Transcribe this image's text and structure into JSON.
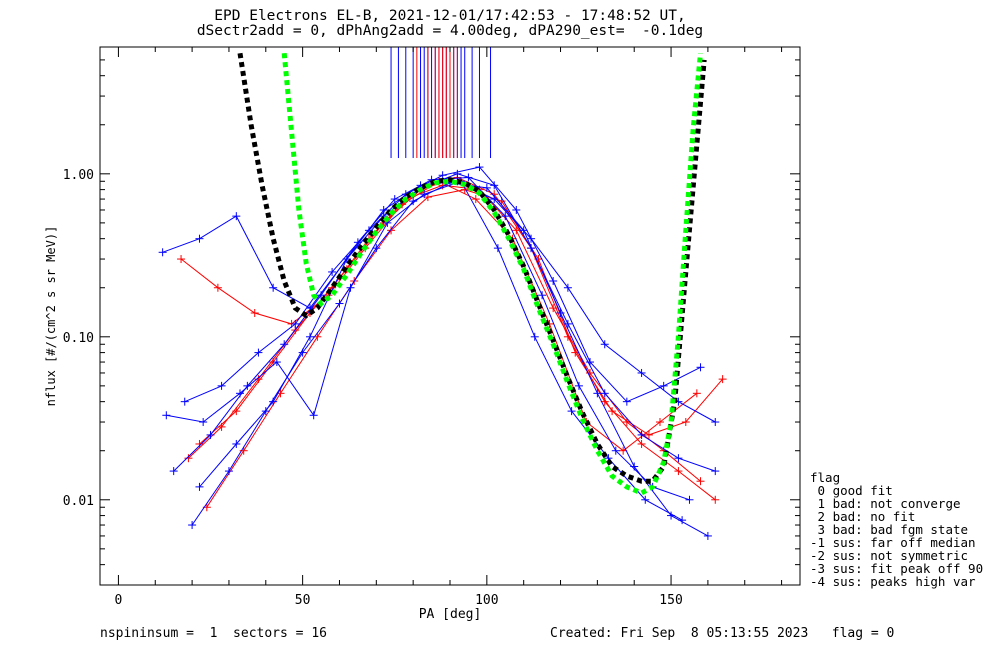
{
  "title_line1": "EPD Electrons EL-B, 2021-12-01/17:42:53 - 17:48:52 UT,",
  "title_line2": "dSectr2add = 0, dPhAng2add = 4.00deg, dPA290_est=  -0.1deg",
  "footer_left": "nspininsum =  1  sectors = 16",
  "footer_right": "Created: Fri Sep  8 05:13:55 2023   flag = 0",
  "legend": {
    "title": "flag",
    "items": [
      " 0 good fit",
      " 1 bad: not converge",
      " 2 bad: no fit",
      " 3 bad: bad fgm state",
      "-1 sus: far off median",
      "-2 sus: not symmetric",
      "-3 sus: fit peak off 90",
      "-4 sus: peaks high var"
    ]
  },
  "colors": {
    "series_a": "#ff0000",
    "series_b": "#0000ff",
    "fit_black": "#000000",
    "fit_green": "#00ff00"
  },
  "chart_data": {
    "type": "line",
    "xlabel": "PA [deg]",
    "ylabel": "nflux [#/(cm^2 s sr MeV)]",
    "xlim": [
      -5,
      185
    ],
    "ylim": [
      0.003,
      6.0
    ],
    "ylog": true,
    "x_ticks": [
      0,
      50,
      100,
      150
    ],
    "y_ticks": [
      0.01,
      0.1,
      1.0
    ],
    "y_tick_labels": [
      "0.01",
      "0.10",
      "1.00"
    ],
    "series": [
      {
        "color": "red",
        "x": [
          19,
          28,
          38,
          48,
          58,
          68,
          78,
          88,
          98,
          108,
          118,
          128,
          138,
          148,
          158
        ],
        "y": [
          0.018,
          0.028,
          0.055,
          0.11,
          0.2,
          0.4,
          0.7,
          0.85,
          0.8,
          0.45,
          0.15,
          0.06,
          0.03,
          0.02,
          0.013
        ]
      },
      {
        "color": "red",
        "x": [
          22,
          32,
          42,
          52,
          62,
          72,
          82,
          92,
          102,
          112,
          122,
          132,
          142,
          152,
          162
        ],
        "y": [
          0.022,
          0.035,
          0.07,
          0.14,
          0.26,
          0.5,
          0.8,
          0.95,
          0.75,
          0.35,
          0.1,
          0.04,
          0.022,
          0.015,
          0.01
        ]
      },
      {
        "color": "red",
        "x": [
          17,
          27,
          37,
          47,
          57,
          67,
          77,
          87,
          97,
          107,
          117,
          127,
          137,
          147,
          157
        ],
        "y": [
          0.3,
          0.2,
          0.14,
          0.12,
          0.18,
          0.35,
          0.65,
          0.9,
          0.7,
          0.4,
          0.12,
          0.03,
          0.02,
          0.03,
          0.045
        ]
      },
      {
        "color": "red",
        "x": [
          24,
          34,
          44,
          54,
          64,
          74,
          84,
          94,
          104,
          114,
          124,
          134,
          144,
          154,
          164
        ],
        "y": [
          0.009,
          0.02,
          0.045,
          0.1,
          0.22,
          0.45,
          0.72,
          0.8,
          0.68,
          0.3,
          0.08,
          0.035,
          0.025,
          0.03,
          0.055
        ]
      },
      {
        "color": "blue",
        "x": [
          12,
          22,
          32,
          42,
          52,
          62,
          72,
          82,
          92,
          102,
          112,
          122,
          132,
          142,
          152,
          162
        ],
        "y": [
          0.33,
          0.4,
          0.55,
          0.2,
          0.15,
          0.3,
          0.55,
          0.82,
          1.0,
          0.85,
          0.35,
          0.12,
          0.045,
          0.025,
          0.018,
          0.015
        ]
      },
      {
        "color": "blue",
        "x": [
          15,
          25,
          35,
          45,
          55,
          65,
          75,
          85,
          95,
          105,
          115,
          125,
          135,
          145,
          155
        ],
        "y": [
          0.015,
          0.025,
          0.05,
          0.09,
          0.18,
          0.38,
          0.7,
          0.92,
          0.95,
          0.55,
          0.18,
          0.05,
          0.02,
          0.012,
          0.01
        ]
      },
      {
        "color": "blue",
        "x": [
          20,
          30,
          40,
          50,
          60,
          70,
          80,
          90,
          100,
          110,
          120,
          130,
          140,
          150,
          160
        ],
        "y": [
          0.007,
          0.015,
          0.035,
          0.08,
          0.16,
          0.35,
          0.68,
          0.88,
          0.82,
          0.45,
          0.14,
          0.045,
          0.016,
          0.008,
          0.006
        ]
      },
      {
        "color": "blue",
        "x": [
          18,
          28,
          38,
          48,
          58,
          68,
          78,
          88,
          98,
          108,
          118,
          128,
          138,
          148,
          158
        ],
        "y": [
          0.04,
          0.05,
          0.08,
          0.12,
          0.25,
          0.45,
          0.75,
          0.98,
          1.1,
          0.6,
          0.22,
          0.07,
          0.04,
          0.05,
          0.065
        ]
      },
      {
        "color": "blue",
        "x": [
          13,
          23,
          33,
          43,
          53,
          63,
          73,
          83,
          93,
          103,
          113,
          123,
          133,
          143,
          153
        ],
        "y": [
          0.033,
          0.03,
          0.045,
          0.07,
          0.033,
          0.2,
          0.5,
          0.75,
          0.9,
          0.35,
          0.1,
          0.035,
          0.018,
          0.01,
          0.0075
        ]
      },
      {
        "color": "blue",
        "x": [
          22,
          32,
          42,
          52,
          62,
          72,
          82,
          92,
          102,
          112,
          122,
          132,
          142,
          152,
          162
        ],
        "y": [
          0.012,
          0.022,
          0.04,
          0.1,
          0.3,
          0.6,
          0.85,
          0.9,
          0.7,
          0.4,
          0.2,
          0.09,
          0.06,
          0.04,
          0.03
        ]
      },
      {
        "color": "black_fit",
        "x": [
          33,
          36,
          39,
          42,
          45,
          48,
          51,
          54,
          58,
          62,
          66,
          70,
          74,
          78,
          82,
          86,
          90,
          94,
          98,
          102,
          106,
          110,
          114,
          118,
          122,
          126,
          130,
          134,
          138,
          142,
          145,
          148,
          151,
          154,
          157,
          159
        ],
        "y": [
          5.5,
          2.0,
          0.85,
          0.4,
          0.22,
          0.15,
          0.135,
          0.15,
          0.2,
          0.27,
          0.36,
          0.47,
          0.6,
          0.72,
          0.82,
          0.9,
          0.92,
          0.88,
          0.78,
          0.6,
          0.42,
          0.27,
          0.16,
          0.095,
          0.056,
          0.034,
          0.022,
          0.016,
          0.014,
          0.013,
          0.013,
          0.016,
          0.04,
          0.25,
          1.5,
          5.0
        ]
      },
      {
        "color": "green_fit",
        "x": [
          45,
          47,
          49,
          51,
          53,
          55,
          58,
          62,
          66,
          70,
          74,
          78,
          82,
          86,
          90,
          94,
          98,
          102,
          106,
          110,
          114,
          118,
          122,
          126,
          130,
          134,
          138,
          142,
          145,
          148,
          150,
          152,
          154,
          156,
          158
        ],
        "y": [
          5.5,
          1.8,
          0.6,
          0.28,
          0.18,
          0.16,
          0.18,
          0.24,
          0.33,
          0.44,
          0.57,
          0.7,
          0.8,
          0.88,
          0.9,
          0.86,
          0.76,
          0.58,
          0.4,
          0.26,
          0.15,
          0.09,
          0.052,
          0.031,
          0.02,
          0.014,
          0.012,
          0.011,
          0.012,
          0.017,
          0.03,
          0.1,
          0.45,
          1.9,
          5.5
        ]
      }
    ],
    "vertical_spikes": {
      "blue_x": [
        74,
        76,
        78,
        80,
        82,
        83,
        84,
        85,
        86,
        87,
        88,
        89,
        90,
        91,
        92,
        93,
        94,
        96,
        98,
        101
      ],
      "red_x": [
        81,
        84,
        86,
        87,
        88,
        89,
        90,
        91,
        92
      ],
      "y_bottom": 1.25
    }
  }
}
